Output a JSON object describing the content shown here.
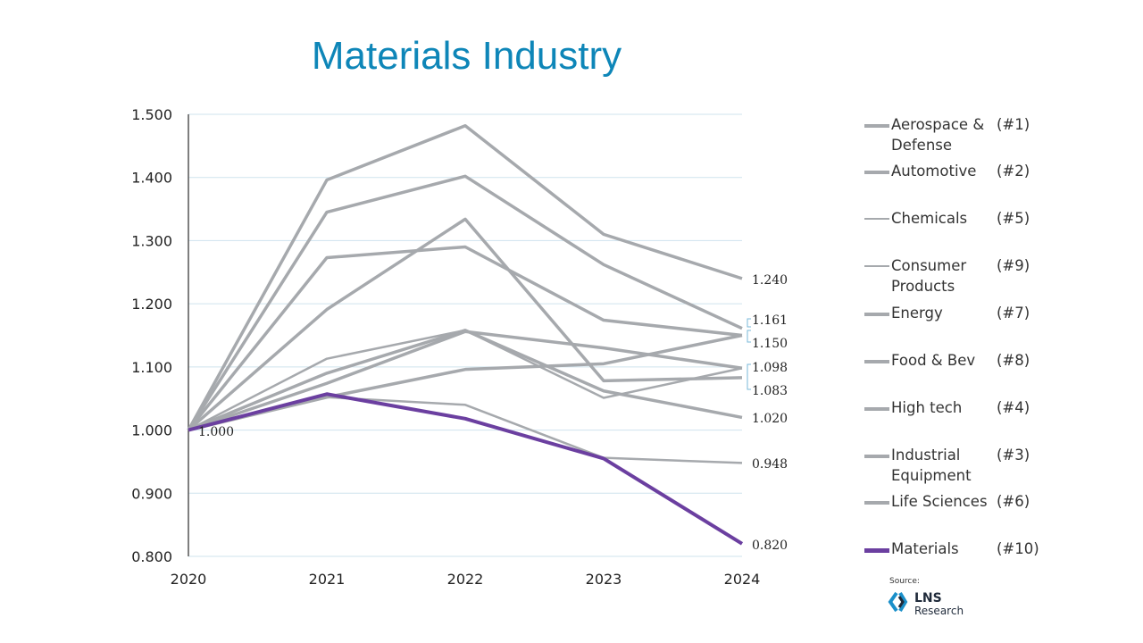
{
  "chart_data": {
    "type": "line",
    "title": "Materials Industry",
    "categories": [
      "2020",
      "2021",
      "2022",
      "2023",
      "2024"
    ],
    "ylim": [
      0.8,
      1.5
    ],
    "yticks": [
      "0.800",
      "0.900",
      "1.000",
      "1.100",
      "1.200",
      "1.300",
      "1.400",
      "1.500"
    ],
    "grid": true,
    "legend_placement": "right",
    "start_label": "1.000",
    "end_labels": [
      "1.240",
      "1.161",
      "1.150",
      "1.098",
      "1.083",
      "1.020",
      "0.948",
      "0.820"
    ],
    "series": [
      {
        "name": "Aerospace & Defense",
        "rank": "(#1)",
        "values": [
          1,
          1.396,
          1.482,
          1.31,
          1.24
        ],
        "color": "#a6a9ad",
        "thin": false
      },
      {
        "name": "Automotive",
        "rank": "(#2)",
        "values": [
          1,
          1.345,
          1.402,
          1.262,
          1.161
        ],
        "color": "#a6a9ad",
        "thin": false
      },
      {
        "name": "Chemicals",
        "rank": "(#5)",
        "values": [
          1,
          1.113,
          1.158,
          1.051,
          1.098
        ],
        "color": "#a6a9ad",
        "thin": true
      },
      {
        "name": "Consumer Products",
        "rank": "(#9)",
        "values": [
          1,
          1.052,
          1.04,
          0.956,
          0.948
        ],
        "color": "#a6a9ad",
        "thin": true
      },
      {
        "name": "Energy",
        "rank": "(#7)",
        "values": [
          1,
          1.191,
          1.334,
          1.078,
          1.083
        ],
        "color": "#a6a9ad",
        "thin": false
      },
      {
        "name": "Food & Bev",
        "rank": "(#8)",
        "values": [
          1,
          1.09,
          1.158,
          1.062,
          1.02
        ],
        "color": "#a6a9ad",
        "thin": false
      },
      {
        "name": "High tech",
        "rank": "(#4)",
        "values": [
          1,
          1.273,
          1.29,
          1.174,
          1.15
        ],
        "color": "#a6a9ad",
        "thin": false
      },
      {
        "name": "Industrial Equipment",
        "rank": "(#3)",
        "values": [
          1,
          1.074,
          1.156,
          1.13,
          1.098
        ],
        "color": "#a6a9ad",
        "thin": false
      },
      {
        "name": "Life Sciences",
        "rank": "(#6)",
        "values": [
          1,
          1.052,
          1.096,
          1.105,
          1.15
        ],
        "color": "#a6a9ad",
        "thin": false
      },
      {
        "name": "Materials",
        "rank": "(#10)",
        "values": [
          1,
          1.057,
          1.018,
          0.955,
          0.82
        ],
        "color": "#6b3fa0",
        "thin": false
      }
    ]
  },
  "source": {
    "label": "Source:",
    "logo_text": "LNS Research"
  }
}
